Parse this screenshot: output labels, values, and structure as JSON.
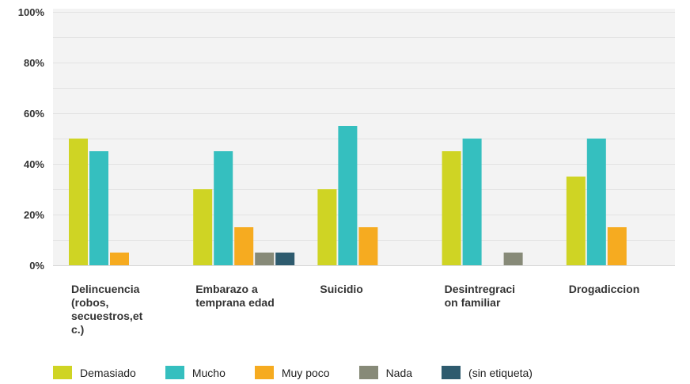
{
  "chart_data": {
    "type": "bar",
    "categories": [
      "Delincuencia\n(robos,\nsecuestros,et\nc.)",
      "Embarazo a\ntemprana edad",
      "Suicidio",
      "Desintregraci\non familiar",
      "Drogadiccion"
    ],
    "series": [
      {
        "name": "Demasiado",
        "color": "#cfd424",
        "values": [
          50,
          30,
          30,
          45,
          35
        ]
      },
      {
        "name": "Mucho",
        "color": "#35bfbf",
        "values": [
          45,
          45,
          55,
          50,
          50
        ]
      },
      {
        "name": "Muy poco",
        "color": "#f6ab20",
        "values": [
          5,
          15,
          15,
          0,
          15
        ]
      },
      {
        "name": "Nada",
        "color": "#878a78",
        "values": [
          0,
          5,
          0,
          5,
          0
        ]
      },
      {
        "name": "(sin etiqueta)",
        "color": "#2e5b6e",
        "values": [
          0,
          5,
          0,
          0,
          0
        ]
      }
    ],
    "ylim": [
      0,
      100
    ],
    "yticks": [
      "0%",
      "20%",
      "40%",
      "60%",
      "80%",
      "100%"
    ],
    "grid": true,
    "legend_position": "bottom-left"
  }
}
